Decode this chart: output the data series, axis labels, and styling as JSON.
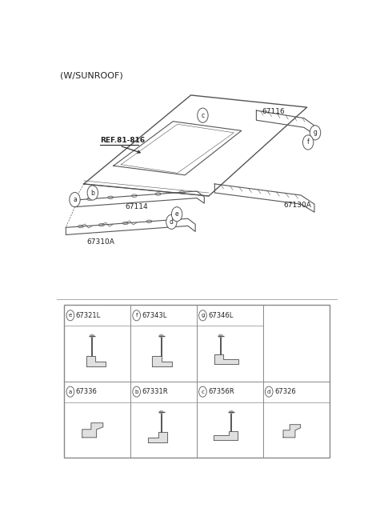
{
  "title": "(W/SUNROOF)",
  "bg_color": "#ffffff",
  "line_color": "#555555",
  "text_color": "#222222",
  "ref_label": "REF.81-816",
  "grid_items": [
    {
      "letter": "a",
      "code": "67336",
      "row": 0,
      "col": 0
    },
    {
      "letter": "b",
      "code": "67331R",
      "row": 0,
      "col": 1
    },
    {
      "letter": "c",
      "code": "67356R",
      "row": 0,
      "col": 2
    },
    {
      "letter": "d",
      "code": "67326",
      "row": 0,
      "col": 3
    },
    {
      "letter": "e",
      "code": "67321L",
      "row": 1,
      "col": 0
    },
    {
      "letter": "f",
      "code": "67343L",
      "row": 1,
      "col": 1
    },
    {
      "letter": "g",
      "code": "67346L",
      "row": 1,
      "col": 2
    }
  ]
}
